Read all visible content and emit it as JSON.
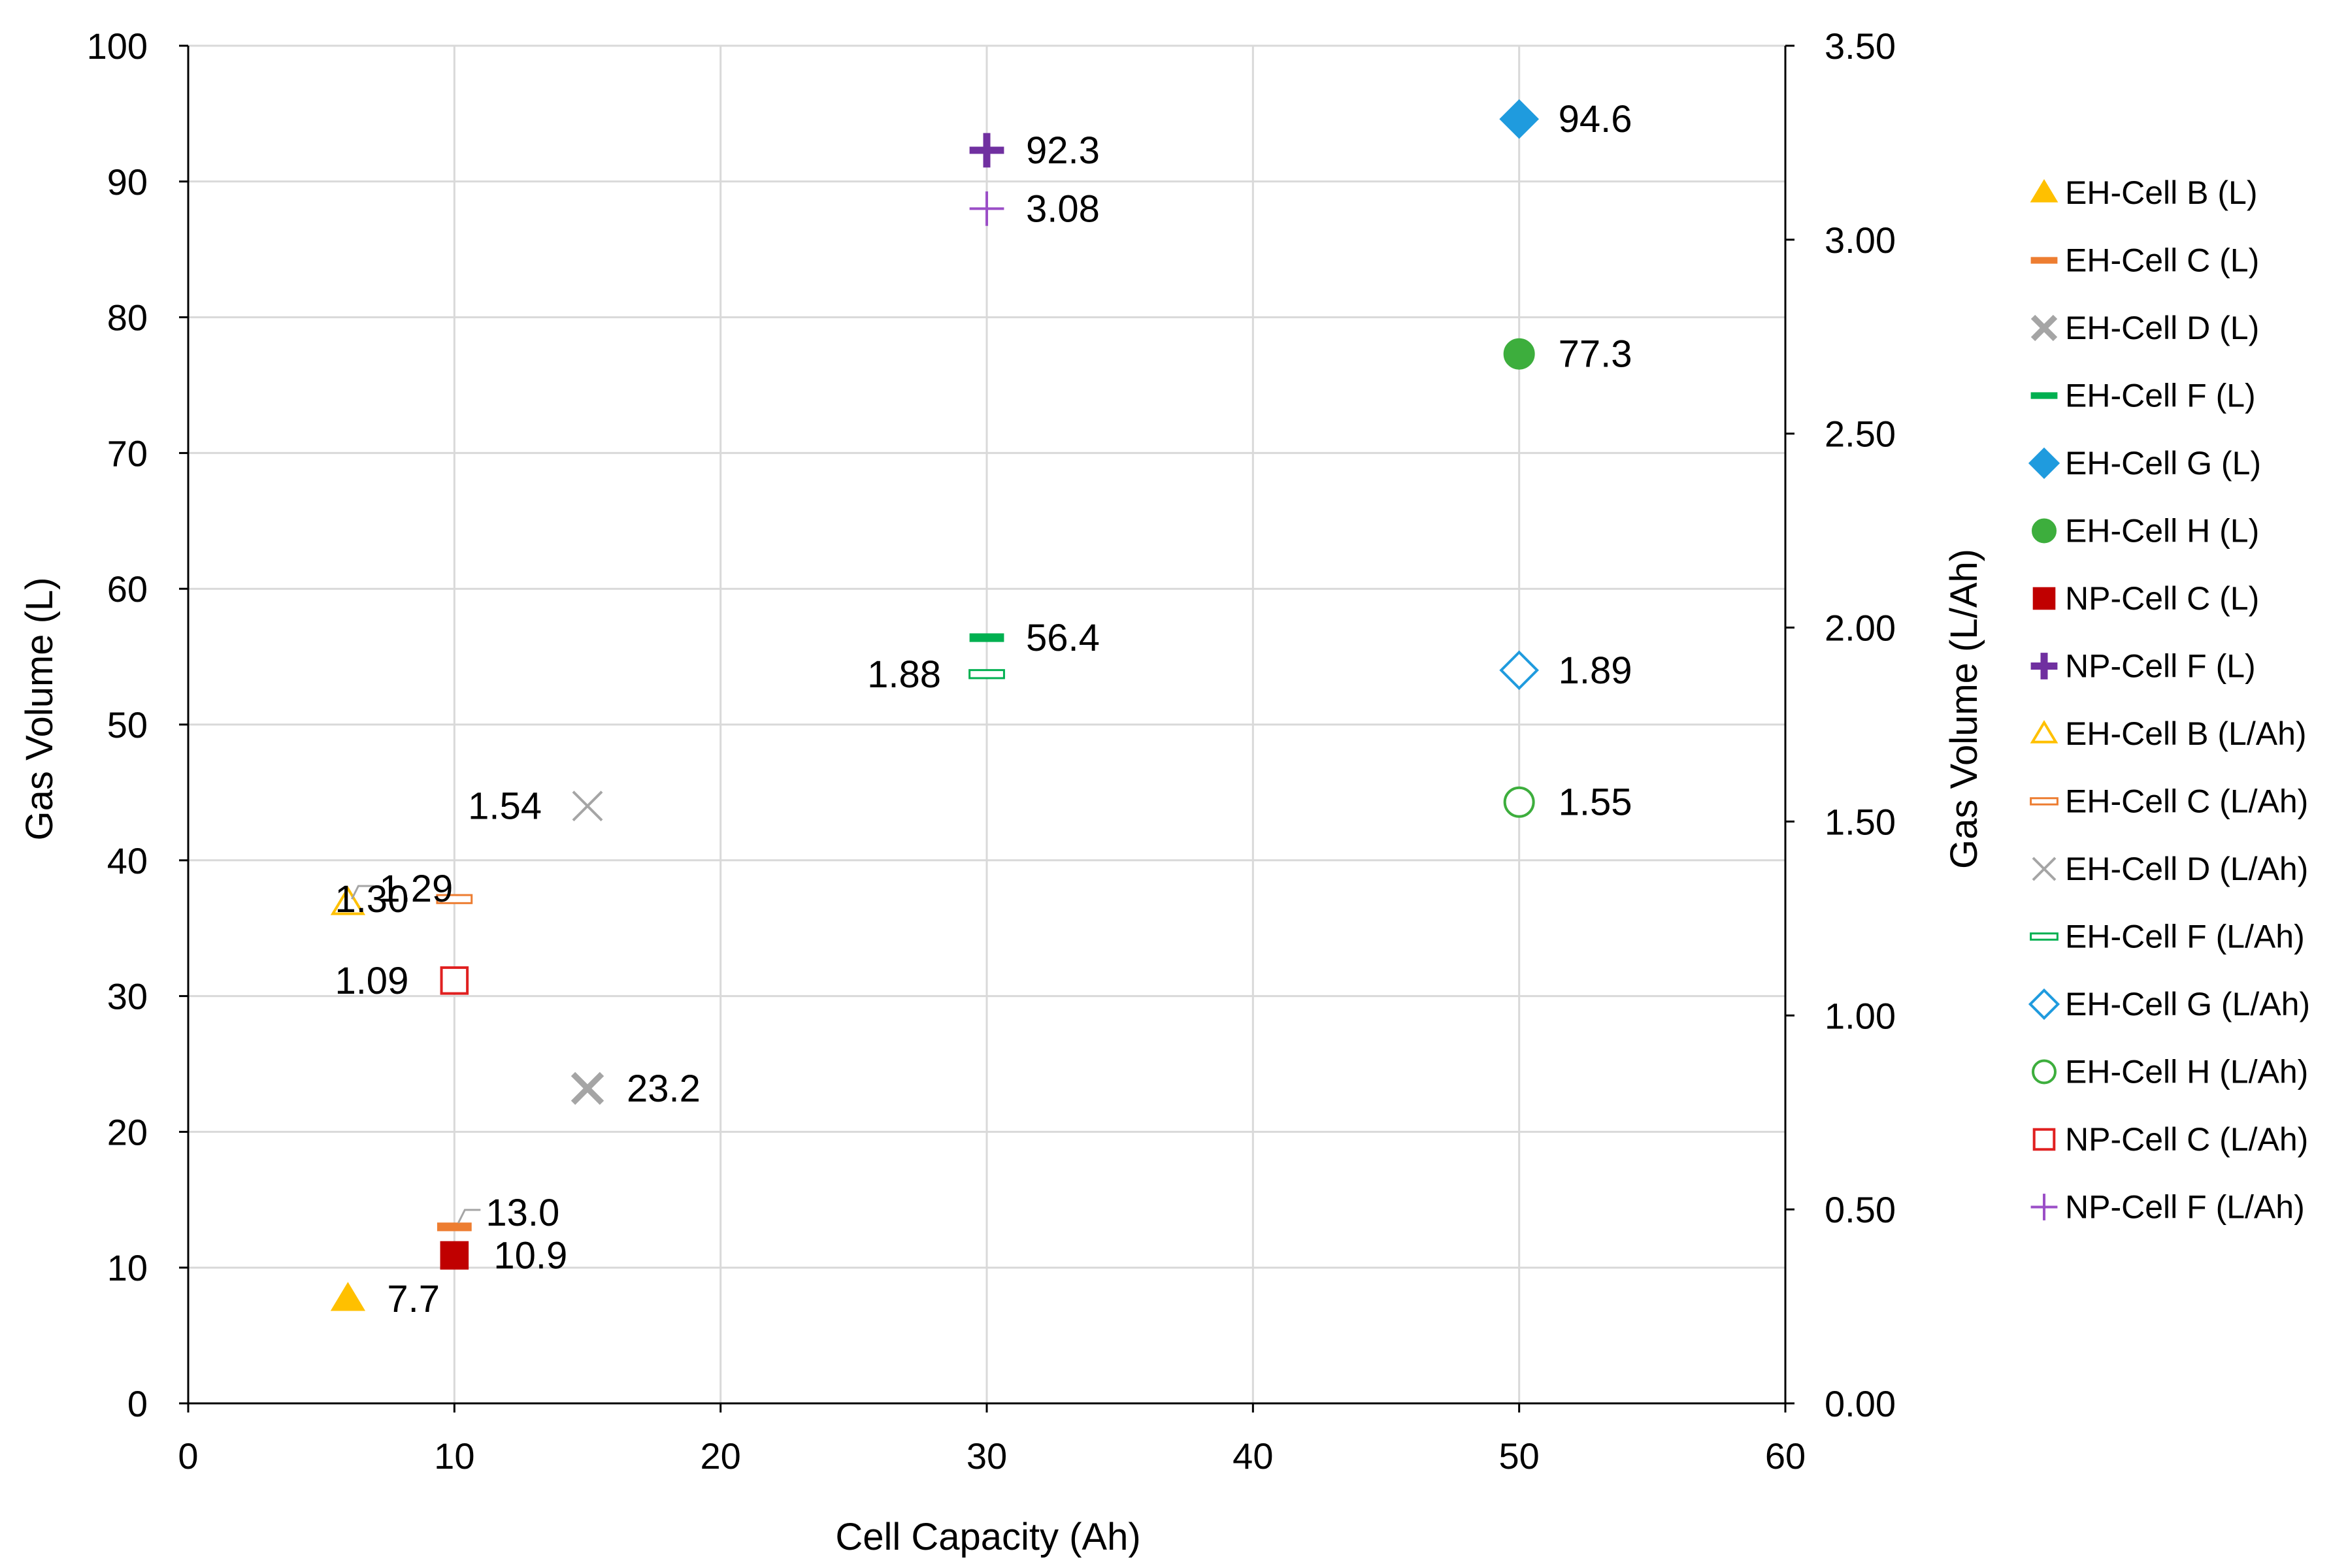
{
  "chart_data": {
    "type": "scatter",
    "title": "",
    "xlabel": "Cell Capacity (Ah)",
    "ylabel": "Gas Volume (L)",
    "y2label": "Gas Volume (L/Ah)",
    "xlim": [
      0,
      60
    ],
    "ylim": [
      0,
      100
    ],
    "y2lim": [
      0,
      3.5
    ],
    "xticks": [
      "0",
      "10",
      "20",
      "30",
      "40",
      "50",
      "60"
    ],
    "yticks": [
      "0",
      "10",
      "20",
      "30",
      "40",
      "50",
      "60",
      "70",
      "80",
      "90",
      "100"
    ],
    "y2ticks": [
      "0.00",
      "0.50",
      "1.00",
      "1.50",
      "2.00",
      "2.50",
      "3.00",
      "3.50"
    ],
    "grid": true,
    "legend_position": "right",
    "series": [
      {
        "name": "EH-Cell B (L)",
        "axis": "left",
        "marker": "triangle",
        "filled": true,
        "color": "#FFC000",
        "points": [
          {
            "x": 6,
            "y": 7.7,
            "label": "7.7"
          }
        ]
      },
      {
        "name": "EH-Cell C (L)",
        "axis": "left",
        "marker": "dash",
        "filled": true,
        "color": "#ED7D31",
        "points": [
          {
            "x": 10,
            "y": 13.0,
            "label": "13.0"
          }
        ]
      },
      {
        "name": "EH-Cell D (L)",
        "axis": "left",
        "marker": "x",
        "filled": true,
        "color": "#A5A5A5",
        "points": [
          {
            "x": 15,
            "y": 23.2,
            "label": "23.2"
          }
        ]
      },
      {
        "name": "EH-Cell F (L)",
        "axis": "left",
        "marker": "dash",
        "filled": true,
        "color": "#00B050",
        "points": [
          {
            "x": 30,
            "y": 56.4,
            "label": "56.4"
          }
        ]
      },
      {
        "name": "EH-Cell G (L)",
        "axis": "left",
        "marker": "diamond",
        "filled": true,
        "color": "#1F9BDE",
        "points": [
          {
            "x": 50,
            "y": 94.6,
            "label": "94.6"
          }
        ]
      },
      {
        "name": "EH-Cell H (L)",
        "axis": "left",
        "marker": "circle",
        "filled": true,
        "color": "#3DAE3D",
        "points": [
          {
            "x": 50,
            "y": 77.3,
            "label": "77.3"
          }
        ]
      },
      {
        "name": "NP-Cell C (L)",
        "axis": "left",
        "marker": "square",
        "filled": true,
        "color": "#C00000",
        "points": [
          {
            "x": 10,
            "y": 10.9,
            "label": "10.9"
          }
        ]
      },
      {
        "name": "NP-Cell F (L)",
        "axis": "left",
        "marker": "plus",
        "filled": true,
        "color": "#7030A0",
        "points": [
          {
            "x": 30,
            "y": 92.3,
            "label": "92.3"
          }
        ]
      },
      {
        "name": "EH-Cell B (L/Ah)",
        "axis": "right",
        "marker": "triangle",
        "filled": false,
        "color": "#FFC000",
        "points": [
          {
            "x": 6,
            "y": 1.29,
            "label": "1.29"
          }
        ]
      },
      {
        "name": "EH-Cell C (L/Ah)",
        "axis": "right",
        "marker": "dash",
        "filled": false,
        "color": "#ED7D31",
        "points": [
          {
            "x": 10,
            "y": 1.3,
            "label": "1.30"
          }
        ]
      },
      {
        "name": "EH-Cell D (L/Ah)",
        "axis": "right",
        "marker": "x",
        "filled": false,
        "color": "#A5A5A5",
        "points": [
          {
            "x": 15,
            "y": 1.54,
            "label": "1.54"
          }
        ]
      },
      {
        "name": "EH-Cell F (L/Ah)",
        "axis": "right",
        "marker": "dash",
        "filled": false,
        "color": "#00B050",
        "points": [
          {
            "x": 30,
            "y": 1.88,
            "label": "1.88"
          }
        ]
      },
      {
        "name": "EH-Cell G (L/Ah)",
        "axis": "right",
        "marker": "diamond",
        "filled": false,
        "color": "#1F9BDE",
        "points": [
          {
            "x": 50,
            "y": 1.89,
            "label": "1.89"
          }
        ]
      },
      {
        "name": "EH-Cell H (L/Ah)",
        "axis": "right",
        "marker": "circle",
        "filled": false,
        "color": "#3DAE3D",
        "points": [
          {
            "x": 50,
            "y": 1.55,
            "label": "1.55"
          }
        ]
      },
      {
        "name": "NP-Cell C (L/Ah)",
        "axis": "right",
        "marker": "square",
        "filled": false,
        "color": "#E02020",
        "points": [
          {
            "x": 10,
            "y": 1.09,
            "label": "1.09"
          }
        ]
      },
      {
        "name": "NP-Cell F (L/Ah)",
        "axis": "right",
        "marker": "plus",
        "filled": false,
        "color": "#9B4FC7",
        "points": [
          {
            "x": 30,
            "y": 3.08,
            "label": "3.08"
          }
        ]
      }
    ]
  }
}
